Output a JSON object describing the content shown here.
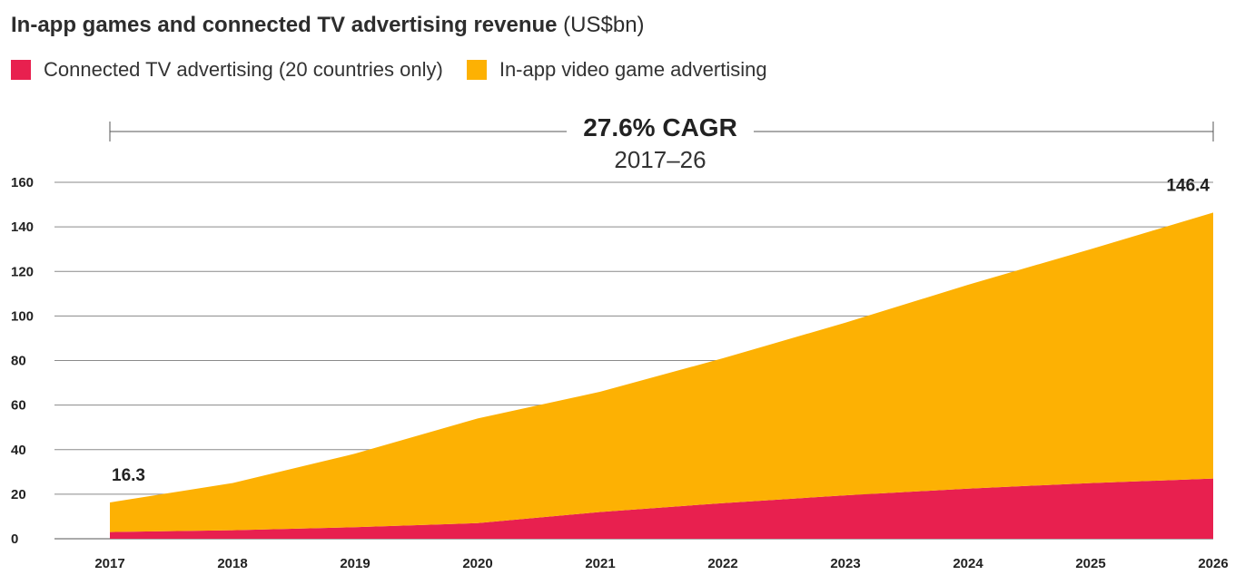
{
  "title": {
    "main": "In-app games and connected TV advertising revenue",
    "unit": "(US$bn)"
  },
  "legend": [
    {
      "label": "Connected TV advertising (20 countries only)",
      "color": "#e8204f"
    },
    {
      "label": "In-app video game advertising",
      "color": "#fdb103"
    }
  ],
  "cagr": {
    "value": "27.6% CAGR",
    "period": "2017–26"
  },
  "chart_data": {
    "type": "area",
    "stacked": true,
    "x": [
      "2017",
      "2018",
      "2019",
      "2020",
      "2021",
      "2022",
      "2023",
      "2024",
      "2025",
      "2026"
    ],
    "series": [
      {
        "name": "Connected TV advertising (20 countries only)",
        "color": "#e8204f",
        "values": [
          3.0,
          3.8,
          5.2,
          7.0,
          12.0,
          16.0,
          19.5,
          22.5,
          25.0,
          27.0
        ]
      },
      {
        "name": "In-app video game advertising",
        "color": "#fdb103",
        "values": [
          13.3,
          21.2,
          33.0,
          47.0,
          54.0,
          65.0,
          77.5,
          91.5,
          105.0,
          119.4
        ]
      }
    ],
    "totals": [
      16.3,
      25.0,
      38.2,
      54.0,
      66.0,
      81.0,
      97.0,
      114.0,
      130.0,
      146.4
    ],
    "ylim": [
      0,
      160
    ],
    "yticks": [
      0,
      20,
      40,
      60,
      80,
      100,
      120,
      140,
      160
    ],
    "annotations": [
      {
        "x": "2017",
        "label": "16.3"
      },
      {
        "x": "2026",
        "label": "146.4"
      }
    ],
    "grid": true,
    "legend_position": "top-left"
  }
}
